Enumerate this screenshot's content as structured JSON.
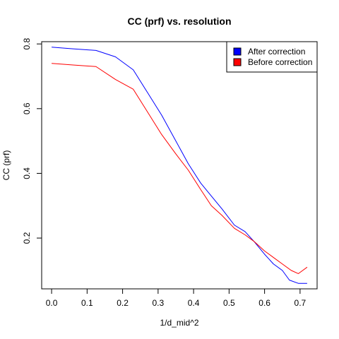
{
  "chart_data": {
    "type": "line",
    "title": "CC (prf) vs. resolution",
    "xlabel": "1/d_mid^2",
    "ylabel": "CC (prf)",
    "xlim": [
      -0.028,
      0.748
    ],
    "ylim": [
      0.043,
      0.807
    ],
    "xticks": [
      0.0,
      0.1,
      0.2,
      0.3,
      0.4,
      0.5,
      0.6,
      0.7
    ],
    "xtick_labels": [
      "0.0",
      "0.1",
      "0.2",
      "0.3",
      "0.4",
      "0.5",
      "0.6",
      "0.7"
    ],
    "yticks": [
      0.2,
      0.4,
      0.6,
      0.8
    ],
    "ytick_labels": [
      "0.2",
      "0.4",
      "0.6",
      "0.8"
    ],
    "grid": false,
    "legend": "top-right",
    "series": [
      {
        "name": "After correction",
        "color": "#0000ff",
        "x": [
          0.0,
          0.06,
          0.125,
          0.18,
          0.23,
          0.27,
          0.31,
          0.35,
          0.385,
          0.42,
          0.45,
          0.48,
          0.515,
          0.545,
          0.57,
          0.6,
          0.625,
          0.65,
          0.67,
          0.695,
          0.72
        ],
        "y": [
          0.79,
          0.785,
          0.78,
          0.76,
          0.72,
          0.65,
          0.58,
          0.5,
          0.43,
          0.37,
          0.33,
          0.29,
          0.24,
          0.22,
          0.19,
          0.15,
          0.12,
          0.1,
          0.07,
          0.06,
          0.06
        ]
      },
      {
        "name": "Before correction",
        "color": "#ff0000",
        "x": [
          0.0,
          0.06,
          0.125,
          0.18,
          0.23,
          0.27,
          0.31,
          0.35,
          0.385,
          0.42,
          0.45,
          0.48,
          0.515,
          0.545,
          0.57,
          0.6,
          0.625,
          0.65,
          0.675,
          0.695,
          0.72
        ],
        "y": [
          0.74,
          0.735,
          0.73,
          0.69,
          0.66,
          0.59,
          0.52,
          0.46,
          0.41,
          0.35,
          0.3,
          0.27,
          0.23,
          0.21,
          0.19,
          0.16,
          0.14,
          0.12,
          0.1,
          0.09,
          0.11
        ]
      }
    ]
  }
}
